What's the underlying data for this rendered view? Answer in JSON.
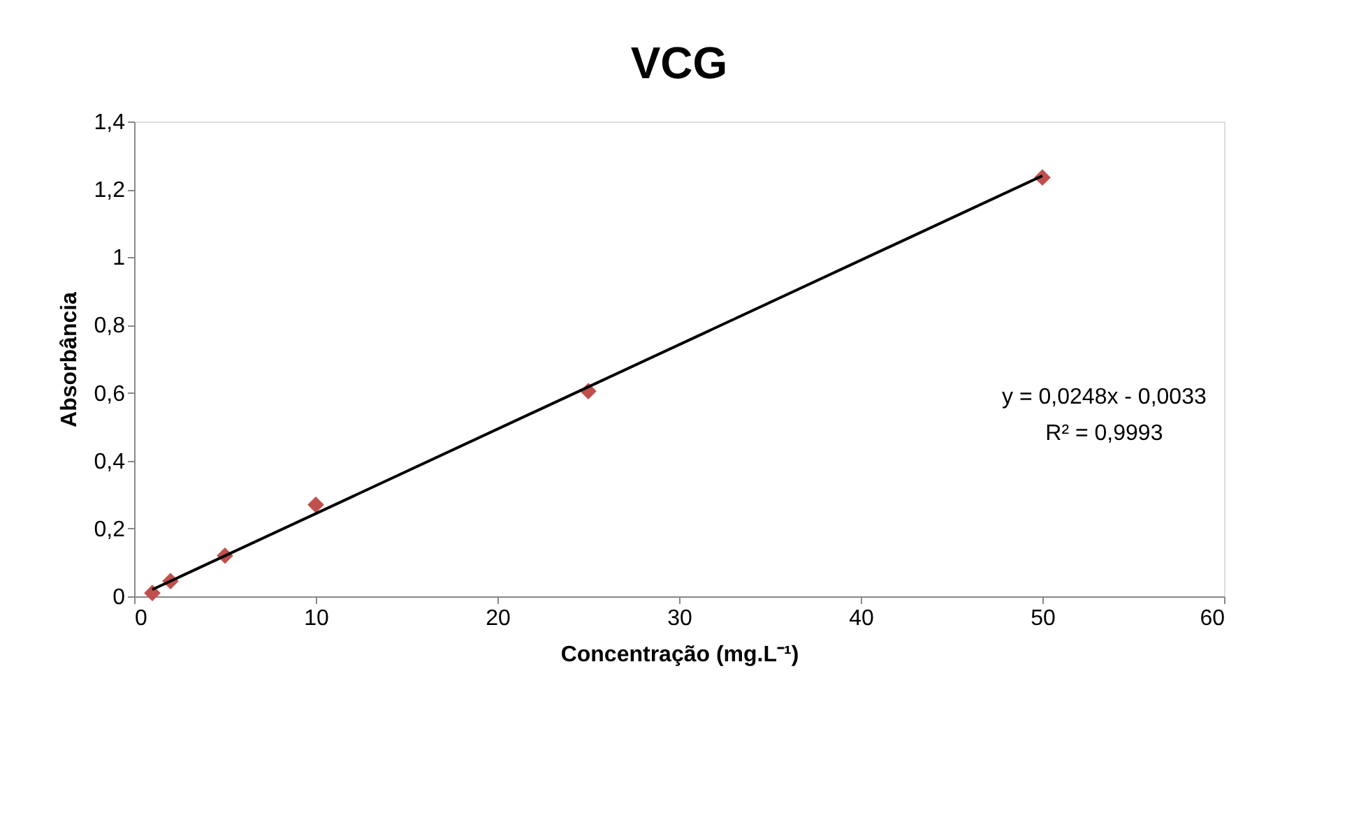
{
  "chart_data": {
    "type": "scatter",
    "title": "VCG",
    "xlabel": "Concentração (mg.L⁻¹)",
    "ylabel": "Absorbância",
    "x": [
      1,
      2,
      5,
      10,
      25,
      50
    ],
    "series": [
      {
        "type": "scatter",
        "color": "#c0504d",
        "marker": "diamond",
        "values": [
          0.01,
          0.045,
          0.12,
          0.27,
          0.605,
          1.235
        ]
      },
      {
        "type": "line",
        "color": "#000000",
        "marker": "none",
        "line_style": "solid",
        "x": [
          1,
          50
        ],
        "values": [
          0.02,
          1.24
        ]
      }
    ],
    "xlim": [
      0,
      60
    ],
    "xticks": [
      0,
      10,
      20,
      30,
      40,
      50,
      60
    ],
    "ylim": [
      0,
      1.4
    ],
    "yticks": [
      0,
      {
        "value": 0.2,
        "label": "0,2"
      },
      {
        "value": 0.4,
        "label": "0,4"
      },
      {
        "value": 0.6,
        "label": "0,6"
      },
      {
        "value": 0.8,
        "label": "0,8"
      },
      1,
      {
        "value": 1.2,
        "label": "1,2"
      },
      {
        "value": 1.4,
        "label": "1,4"
      }
    ],
    "grid": false,
    "annotations": [
      "y = 0,0248x - 0,0033",
      "R² = 0,9993"
    ]
  }
}
